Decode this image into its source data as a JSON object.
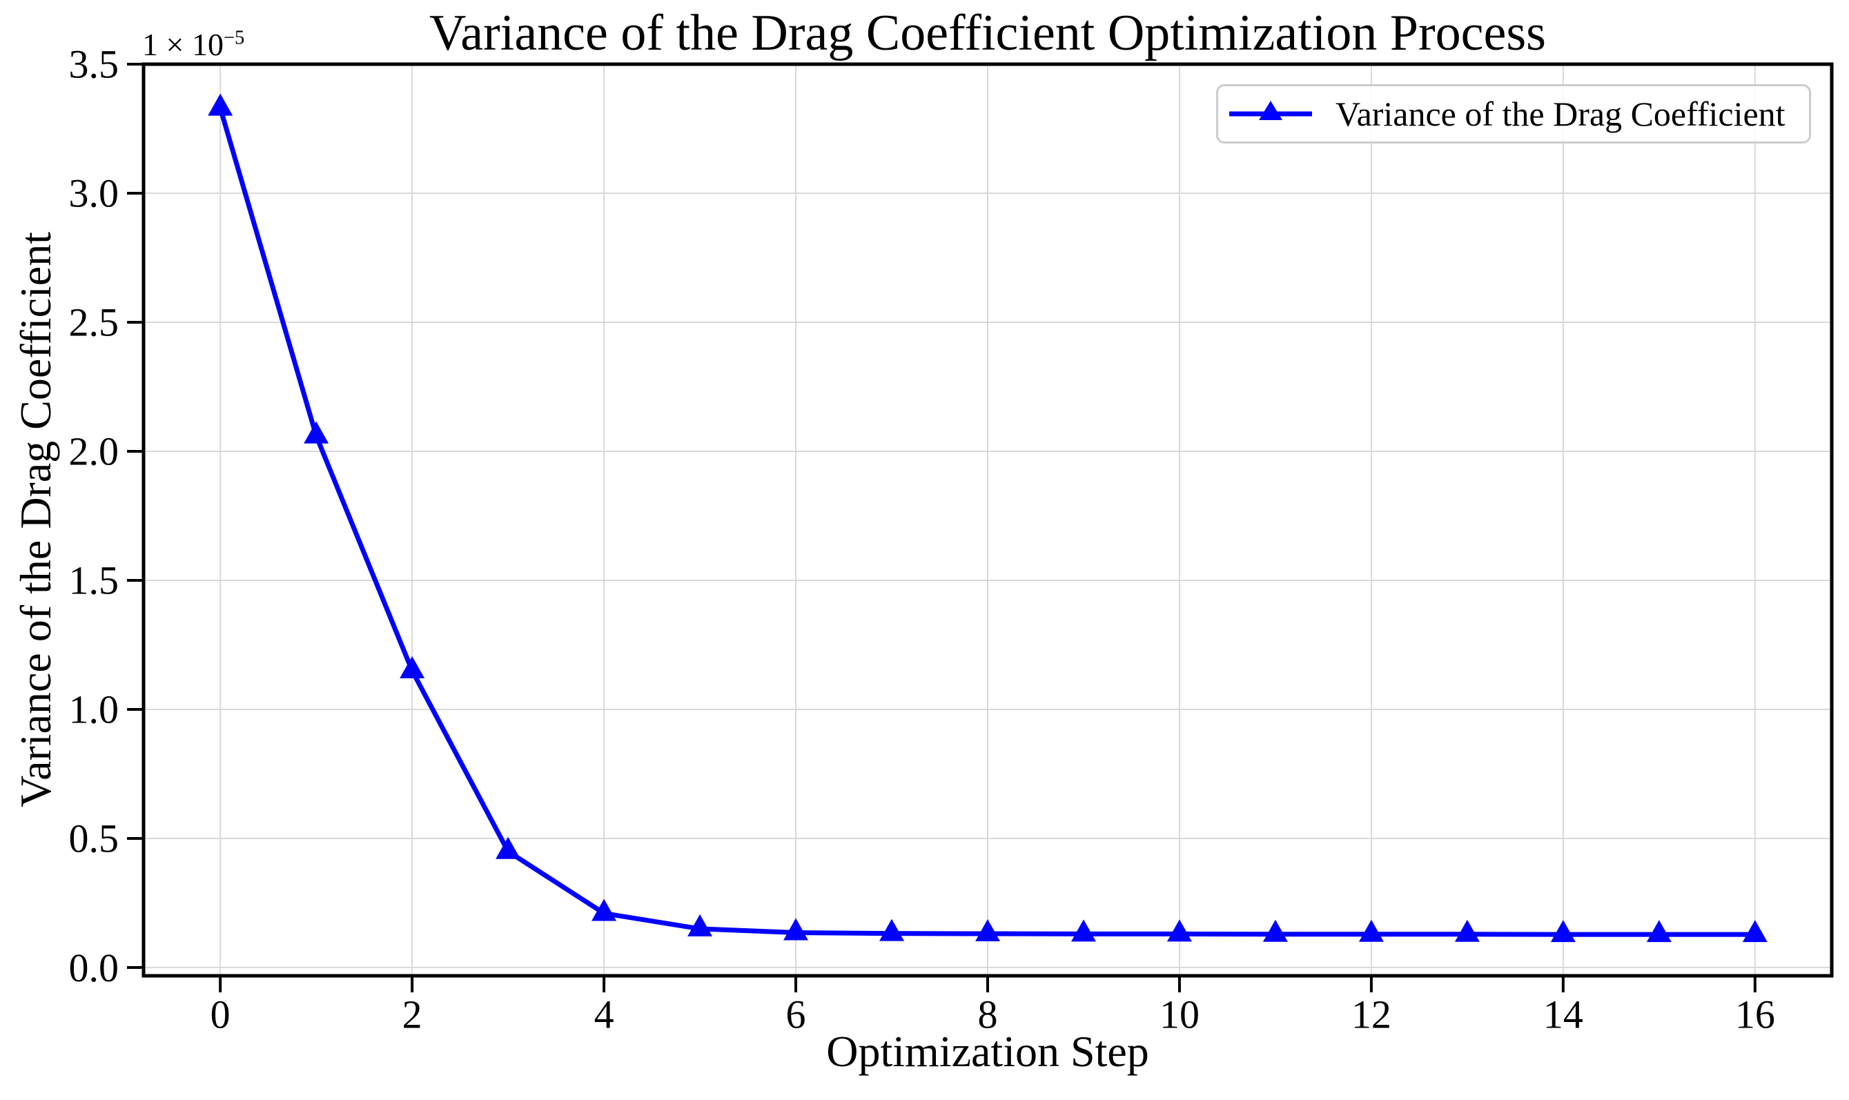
{
  "figure": {
    "title": "Variance of the Drag Coefficient Optimization Process",
    "offset_base": "1 × 10",
    "offset_exponent": "−5",
    "xlabel": "Optimization Step",
    "ylabel": "Variance of the Drag Coefficient",
    "background_color": "#ffffff",
    "text_color": "#000000"
  },
  "legend": {
    "label": "Variance of the Drag Coefficient",
    "line_color": "#0000ff",
    "marker": "triangle-up"
  },
  "chart_data": {
    "type": "line",
    "title": "Variance of the Drag Coefficient Optimization Process",
    "xlabel": "Optimization Step",
    "ylabel": "Variance of the Drag Coefficient",
    "y_scale_offset_text": "1 × 10⁻⁵",
    "x": [
      0,
      1,
      2,
      3,
      4,
      5,
      6,
      7,
      8,
      9,
      10,
      11,
      12,
      13,
      14,
      15,
      16
    ],
    "series": [
      {
        "name": "Variance of the Drag Coefficient",
        "color": "#0000ff",
        "marker": "triangle-up",
        "values_times_1e5": [
          3.33,
          2.06,
          1.15,
          0.45,
          0.21,
          0.15,
          0.135,
          0.132,
          0.131,
          0.13,
          0.13,
          0.129,
          0.129,
          0.129,
          0.128,
          0.128,
          0.128
        ]
      }
    ],
    "x_ticks": [
      "0",
      "2",
      "4",
      "6",
      "8",
      "10",
      "12",
      "14",
      "16"
    ],
    "y_ticks": [
      "0.0",
      "0.5",
      "1.0",
      "1.5",
      "2.0",
      "2.5",
      "3.0",
      "3.5"
    ],
    "xlim": [
      -0.8,
      16.8
    ],
    "ylim": [
      -0.032,
      3.5
    ],
    "grid": true,
    "gridline_color": "#d9d9d9",
    "spine_color": "#000000",
    "legend_position": "upper right"
  }
}
